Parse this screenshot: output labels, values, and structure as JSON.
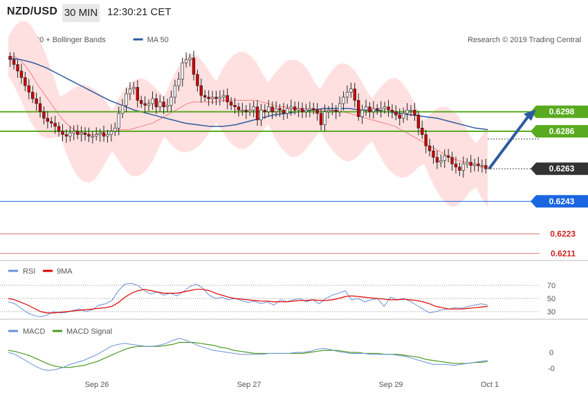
{
  "header": {
    "pair": "NZD/USD",
    "timeframe": "30 MIN",
    "time": "12:30:21 CET"
  },
  "legend": {
    "main_left": [
      {
        "name": "MA 20 + Bollinger Bands",
        "color": "#f08080"
      },
      {
        "name": "MA 50",
        "color": "#2c5aa0"
      }
    ],
    "copyright": "Research © 2019 Trading Central",
    "rsi": [
      {
        "name": "RSI",
        "color": "#6a8fd8"
      },
      {
        "name": "9MA",
        "color": "#e00000"
      }
    ],
    "macd": [
      {
        "name": "MACD",
        "color": "#6a8fd8"
      },
      {
        "name": "MACD Signal",
        "color": "#4a9a20"
      }
    ]
  },
  "colors": {
    "bull": "#f0f0f0",
    "bear": "#cc0000",
    "bands_fill": "#ffe0e0",
    "ma20": "#f08080",
    "ma50": "#2c5aa0",
    "resistance": "#5aaa20",
    "support_blue": "#1a66e0",
    "target_red": "#e07070",
    "arrow": "#2c5aa0"
  },
  "levels": [
    {
      "value": "0.6298",
      "kind": "resistance"
    },
    {
      "value": "0.6286",
      "kind": "resistance"
    },
    {
      "value": "0.6263",
      "kind": "current"
    },
    {
      "value": "0.6243",
      "kind": "support"
    },
    {
      "value": "0.6223",
      "kind": "target"
    },
    {
      "value": "0.6211",
      "kind": "target"
    }
  ],
  "x_axis": {
    "labels": [
      "Sep 26",
      "Sep 27",
      "Sep 29",
      "Oct 1"
    ]
  },
  "rsi_axis": {
    "ticks": [
      "70",
      "50",
      "30"
    ]
  },
  "macd_axis": {
    "ticks": [
      "0",
      "-0"
    ]
  },
  "chart_data": {
    "type": "candlestick",
    "price_range": [
      0.62075,
      0.63505
    ],
    "candles_close": [
      0.633,
      0.6327,
      0.6323,
      0.6319,
      0.6314,
      0.631,
      0.6306,
      0.6303,
      0.6298,
      0.6294,
      0.6292,
      0.6291,
      0.6289,
      0.6286,
      0.6284,
      0.6283,
      0.6285,
      0.6286,
      0.6284,
      0.6285,
      0.6284,
      0.6283,
      0.6283,
      0.6284,
      0.6285,
      0.6283,
      0.6284,
      0.6286,
      0.6288,
      0.6297,
      0.6302,
      0.6309,
      0.6312,
      0.6313,
      0.6305,
      0.6303,
      0.6302,
      0.6303,
      0.6306,
      0.6301,
      0.6304,
      0.6301,
      0.6302,
      0.6307,
      0.6314,
      0.6318,
      0.6328,
      0.633,
      0.6331,
      0.6321,
      0.6314,
      0.6308,
      0.6307,
      0.6306,
      0.6307,
      0.6306,
      0.6307,
      0.6308,
      0.6304,
      0.6302,
      0.6301,
      0.6299,
      0.6299,
      0.6298,
      0.6299,
      0.6301,
      0.6293,
      0.6299,
      0.6298,
      0.6301,
      0.6298,
      0.63,
      0.6299,
      0.6297,
      0.63,
      0.6301,
      0.6299,
      0.63,
      0.6298,
      0.6299,
      0.63,
      0.6299,
      0.6297,
      0.629,
      0.6298,
      0.6299,
      0.6299,
      0.6298,
      0.6303,
      0.6307,
      0.631,
      0.6312,
      0.6305,
      0.6295,
      0.6299,
      0.6301,
      0.6298,
      0.63,
      0.6299,
      0.63,
      0.6301,
      0.6299,
      0.6298,
      0.6296,
      0.6294,
      0.6297,
      0.6299,
      0.6299,
      0.6296,
      0.6288,
      0.6284,
      0.6277,
      0.6274,
      0.627,
      0.6267,
      0.6268,
      0.6271,
      0.627,
      0.6266,
      0.6264,
      0.6262,
      0.6266,
      0.6267,
      0.6265,
      0.6266,
      0.6265,
      0.6265,
      0.6263
    ],
    "ma20": [
      0.6332,
      0.6332,
      0.633,
      0.6326,
      0.6321,
      0.6315,
      0.631,
      0.6305,
      0.63,
      0.6295,
      0.6291,
      0.6288,
      0.6286,
      0.6285,
      0.6284,
      0.6284,
      0.6285,
      0.6286,
      0.6286,
      0.6287,
      0.6287,
      0.6287,
      0.6288,
      0.6289,
      0.629,
      0.6291,
      0.6293,
      0.6295,
      0.6297,
      0.6299,
      0.6301,
      0.6303,
      0.6304,
      0.6304,
      0.6304,
      0.6304,
      0.6304,
      0.6305,
      0.6305,
      0.6305,
      0.6305,
      0.6305,
      0.6305,
      0.6305,
      0.6304,
      0.6303,
      0.6302,
      0.6301,
      0.6301,
      0.63,
      0.63,
      0.63,
      0.63,
      0.6299,
      0.6299,
      0.6299,
      0.6299,
      0.6299,
      0.6298,
      0.6297,
      0.6296,
      0.6295,
      0.6294,
      0.6293,
      0.6292,
      0.6291,
      0.629,
      0.6289,
      0.6287,
      0.6285,
      0.6283,
      0.6281,
      0.6279,
      0.6277,
      0.6275,
      0.6273,
      0.6271,
      0.6269,
      0.6268,
      0.6267,
      0.6266,
      0.6265,
      0.6264,
      0.6264
    ],
    "ma50": [
      0.6331,
      0.633,
      0.6328,
      0.6325,
      0.6321,
      0.6317,
      0.6313,
      0.6309,
      0.6305,
      0.6302,
      0.6299,
      0.6297,
      0.6295,
      0.6293,
      0.6291,
      0.629,
      0.6289,
      0.6289,
      0.629,
      0.6292,
      0.6294,
      0.6296,
      0.6297,
      0.6298,
      0.6299,
      0.63,
      0.63,
      0.63,
      0.6299,
      0.6299,
      0.6298,
      0.6297,
      0.6296,
      0.6295,
      0.6294,
      0.6292,
      0.629,
      0.6288,
      0.6287
    ],
    "rsi": [
      45,
      42,
      35,
      28,
      24,
      22,
      25,
      30,
      28,
      29,
      32,
      34,
      30,
      33,
      40,
      42,
      47,
      62,
      72,
      73,
      70,
      62,
      57,
      60,
      55,
      58,
      54,
      60,
      68,
      72,
      66,
      55,
      50,
      52,
      48,
      50,
      47,
      44,
      46,
      42,
      45,
      40,
      48,
      45,
      48,
      50,
      45,
      48,
      42,
      50,
      55,
      58,
      62,
      48,
      50,
      45,
      48,
      50,
      38,
      52,
      48,
      50,
      46,
      40,
      34,
      28,
      30,
      33,
      34,
      36,
      35,
      38,
      40,
      42,
      40
    ],
    "rsi_ma": [
      50,
      48,
      44,
      40,
      35,
      30,
      28,
      28,
      29,
      30,
      31,
      32,
      33,
      34,
      35,
      36,
      38,
      44,
      52,
      58,
      62,
      64,
      62,
      60,
      58,
      58,
      58,
      60,
      62,
      64,
      64,
      62,
      58,
      55,
      52,
      50,
      49,
      48,
      47,
      46,
      46,
      45,
      45,
      45,
      46,
      47,
      47,
      48,
      47,
      47,
      48,
      50,
      53,
      54,
      53,
      52,
      51,
      50,
      49,
      48,
      48,
      49,
      48,
      47,
      45,
      42,
      38,
      36,
      34,
      34,
      34,
      35,
      36,
      37,
      38
    ],
    "macd": [
      0,
      -2,
      -6,
      -10,
      -14,
      -17,
      -18,
      -17,
      -15,
      -12,
      -10,
      -8,
      -5,
      -2,
      2,
      6,
      8,
      9,
      8,
      7,
      6,
      6,
      7,
      9,
      12,
      14,
      12,
      9,
      6,
      4,
      2,
      1,
      0,
      -1,
      -2,
      -2,
      -2,
      -2,
      -1,
      -1,
      -1,
      -1,
      0,
      0,
      1,
      3,
      4,
      3,
      1,
      0,
      -1,
      -1,
      -1,
      -2,
      -2,
      -2,
      -2,
      -3,
      -4,
      -6,
      -8,
      -10,
      -12,
      -12,
      -12,
      -13,
      -12,
      -11,
      -10,
      -9,
      -8
    ],
    "macd_signal": [
      2,
      1,
      -1,
      -3,
      -6,
      -9,
      -12,
      -14,
      -15,
      -15,
      -14,
      -13,
      -11,
      -9,
      -6,
      -3,
      0,
      3,
      5,
      6,
      6,
      6,
      6,
      7,
      8,
      10,
      10,
      10,
      9,
      8,
      7,
      5,
      4,
      2,
      1,
      0,
      -1,
      -1,
      -1,
      -1,
      -1,
      -1,
      -1,
      -1,
      0,
      1,
      2,
      2,
      2,
      1,
      0,
      0,
      -1,
      -1,
      -1,
      -2,
      -2,
      -2,
      -3,
      -4,
      -5,
      -7,
      -8,
      -9,
      -10,
      -11,
      -11,
      -11,
      -10,
      -10,
      -9
    ]
  }
}
